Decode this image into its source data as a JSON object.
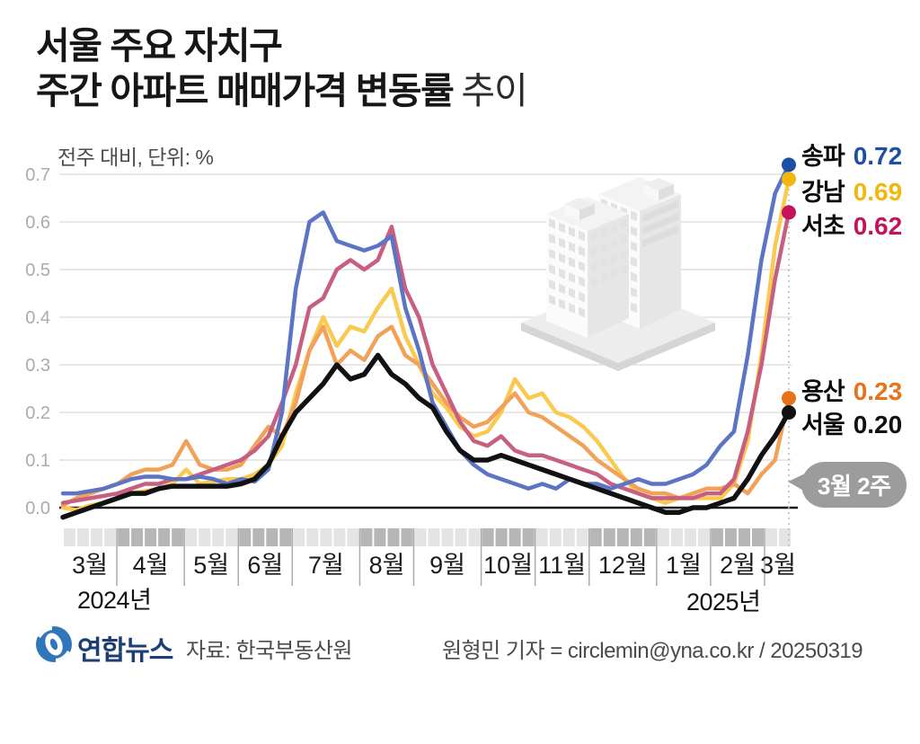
{
  "title": {
    "line1": "서울 주요 자치구",
    "line2_bold": "주간 아파트 매매가격 변동률",
    "line2_light": "추이"
  },
  "subtitle": "전주 대비, 단위: %",
  "chart_data": {
    "type": "line",
    "unit": "%",
    "ylim": [
      -0.05,
      0.75
    ],
    "grid": true,
    "y_ticks": [
      "0.7",
      "0.6",
      "0.5",
      "0.4",
      "0.3",
      "0.2",
      "0.1",
      "0.0"
    ],
    "months": [
      {
        "label": "3월",
        "weeks": 4
      },
      {
        "label": "4월",
        "weeks": 5
      },
      {
        "label": "5월",
        "weeks": 4
      },
      {
        "label": "6월",
        "weeks": 4
      },
      {
        "label": "7월",
        "weeks": 5
      },
      {
        "label": "8월",
        "weeks": 4
      },
      {
        "label": "9월",
        "weeks": 5
      },
      {
        "label": "10월",
        "weeks": 4
      },
      {
        "label": "11월",
        "weeks": 4
      },
      {
        "label": "12월",
        "weeks": 5
      },
      {
        "label": "1월",
        "weeks": 4
      },
      {
        "label": "2월",
        "weeks": 4
      },
      {
        "label": "3월",
        "weeks": 2
      }
    ],
    "year_labels": [
      "2024년",
      "2025년"
    ],
    "annotation": "3월 2주",
    "series": [
      {
        "name": "송파",
        "final_value": "0.72",
        "color": "#5c74c3",
        "dot_color": "#1d4fa3",
        "values": [
          0.03,
          0.03,
          0.035,
          0.04,
          0.05,
          0.06,
          0.065,
          0.065,
          0.06,
          0.06,
          0.065,
          0.06,
          0.05,
          0.06,
          0.055,
          0.08,
          0.2,
          0.46,
          0.6,
          0.62,
          0.56,
          0.55,
          0.54,
          0.55,
          0.57,
          0.42,
          0.33,
          0.22,
          0.17,
          0.12,
          0.09,
          0.07,
          0.06,
          0.05,
          0.04,
          0.05,
          0.04,
          0.06,
          0.05,
          0.05,
          0.04,
          0.05,
          0.06,
          0.05,
          0.05,
          0.06,
          0.07,
          0.09,
          0.13,
          0.16,
          0.32,
          0.52,
          0.66,
          0.72
        ]
      },
      {
        "name": "강남",
        "final_value": "0.69",
        "color": "#fac94f",
        "dot_color": "#f2b70c",
        "values": [
          0.0,
          -0.005,
          0.005,
          0.01,
          0.02,
          0.03,
          0.035,
          0.04,
          0.05,
          0.08,
          0.05,
          0.055,
          0.06,
          0.06,
          0.07,
          0.09,
          0.13,
          0.24,
          0.33,
          0.4,
          0.34,
          0.38,
          0.37,
          0.42,
          0.46,
          0.36,
          0.3,
          0.24,
          0.21,
          0.17,
          0.15,
          0.16,
          0.2,
          0.27,
          0.23,
          0.24,
          0.2,
          0.19,
          0.17,
          0.14,
          0.1,
          0.06,
          0.03,
          0.02,
          0.01,
          0.02,
          0.02,
          0.02,
          0.02,
          0.05,
          0.14,
          0.32,
          0.55,
          0.69
        ]
      },
      {
        "name": "서초",
        "final_value": "0.62",
        "color": "#c75f80",
        "dot_color": "#c2135b",
        "values": [
          0.01,
          0.015,
          0.02,
          0.025,
          0.03,
          0.04,
          0.05,
          0.05,
          0.06,
          0.06,
          0.07,
          0.08,
          0.09,
          0.1,
          0.12,
          0.15,
          0.22,
          0.3,
          0.42,
          0.44,
          0.5,
          0.52,
          0.5,
          0.52,
          0.59,
          0.46,
          0.4,
          0.3,
          0.24,
          0.18,
          0.14,
          0.13,
          0.15,
          0.12,
          0.11,
          0.11,
          0.1,
          0.09,
          0.08,
          0.07,
          0.05,
          0.04,
          0.03,
          0.02,
          0.02,
          0.02,
          0.02,
          0.03,
          0.03,
          0.06,
          0.16,
          0.3,
          0.48,
          0.62
        ]
      },
      {
        "name": "용산",
        "final_value": "0.23",
        "color": "#f2a159",
        "dot_color": "#e8711a",
        "values": [
          0.005,
          0.02,
          0.03,
          0.04,
          0.05,
          0.07,
          0.08,
          0.08,
          0.09,
          0.14,
          0.09,
          0.08,
          0.08,
          0.09,
          0.13,
          0.17,
          0.15,
          0.22,
          0.33,
          0.38,
          0.3,
          0.33,
          0.31,
          0.36,
          0.38,
          0.32,
          0.3,
          0.26,
          0.22,
          0.19,
          0.17,
          0.18,
          0.21,
          0.24,
          0.2,
          0.19,
          0.17,
          0.15,
          0.13,
          0.1,
          0.08,
          0.06,
          0.04,
          0.03,
          0.03,
          0.02,
          0.03,
          0.04,
          0.04,
          0.05,
          0.03,
          0.07,
          0.1,
          0.23
        ]
      },
      {
        "name": "서울",
        "final_value": "0.20",
        "color": "#111111",
        "dot_color": "#111111",
        "values": [
          -0.02,
          -0.01,
          0.0,
          0.01,
          0.02,
          0.03,
          0.03,
          0.04,
          0.045,
          0.045,
          0.045,
          0.045,
          0.045,
          0.05,
          0.06,
          0.09,
          0.15,
          0.2,
          0.23,
          0.26,
          0.3,
          0.27,
          0.28,
          0.32,
          0.28,
          0.26,
          0.23,
          0.21,
          0.16,
          0.12,
          0.1,
          0.1,
          0.11,
          0.1,
          0.09,
          0.08,
          0.07,
          0.06,
          0.05,
          0.04,
          0.03,
          0.02,
          0.01,
          0.0,
          -0.01,
          -0.01,
          0.0,
          0.0,
          0.01,
          0.02,
          0.06,
          0.11,
          0.15,
          0.2
        ]
      }
    ]
  },
  "footer": {
    "logo_text": "연합뉴스",
    "source": "자료: 한국부동산원",
    "credit": "원형민 기자 = circlemin@yna.co.kr / 20250319"
  }
}
